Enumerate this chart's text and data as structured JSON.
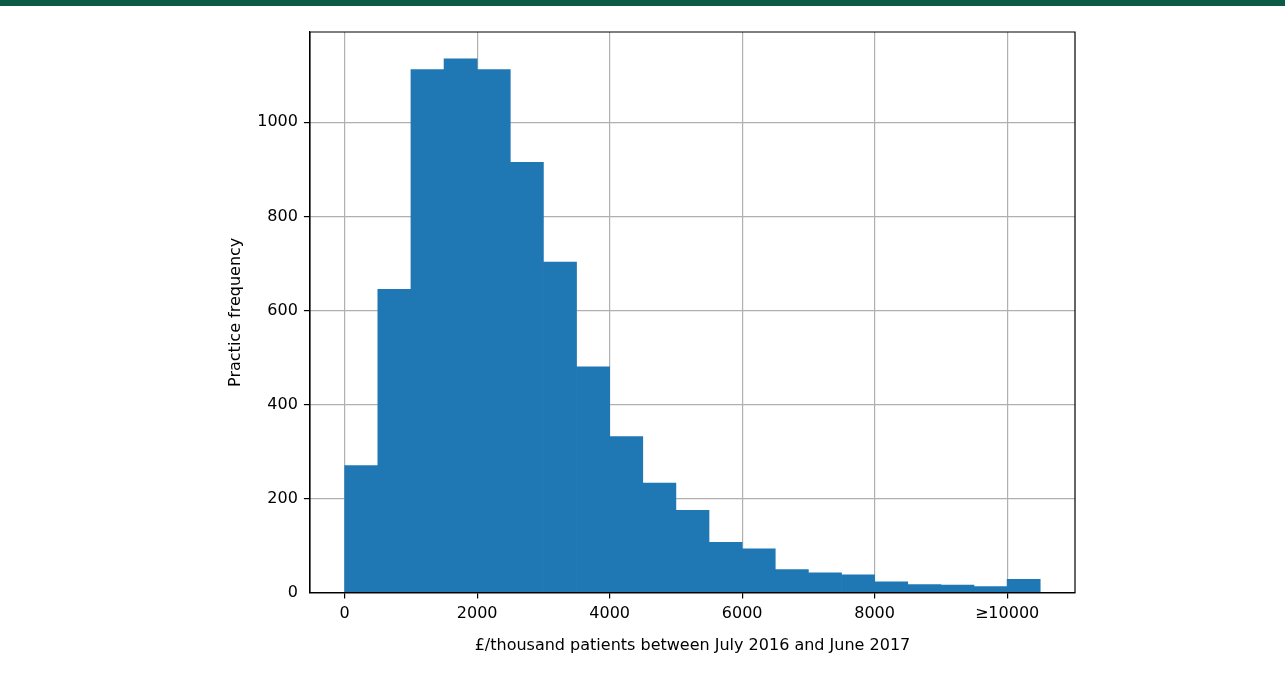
{
  "chart_data": {
    "type": "histogram",
    "xlabel": "£/thousand patients between July 2016 and June 2017",
    "ylabel": "Practice frequency",
    "bins": [
      0,
      500,
      1000,
      1500,
      2000,
      2500,
      3000,
      3500,
      4000,
      4500,
      5000,
      5500,
      6000,
      6500,
      7000,
      7500,
      8000,
      8500,
      9000,
      9500,
      10000,
      10500
    ],
    "values": [
      270,
      645,
      1112,
      1135,
      1112,
      915,
      703,
      480,
      332,
      233,
      175,
      107,
      93,
      49,
      42,
      38,
      23,
      17,
      16,
      13,
      28
    ],
    "color": "#1f77b4",
    "xlim": [
      -525,
      11025
    ],
    "xticks": [
      0,
      2000,
      4000,
      6000,
      8000,
      {
        "value": 10000,
        "label": "≥10000"
      }
    ],
    "ylim": [
      0,
      1192
    ],
    "yticks": [
      0,
      200,
      400,
      600,
      800,
      1000
    ],
    "grid": true
  }
}
